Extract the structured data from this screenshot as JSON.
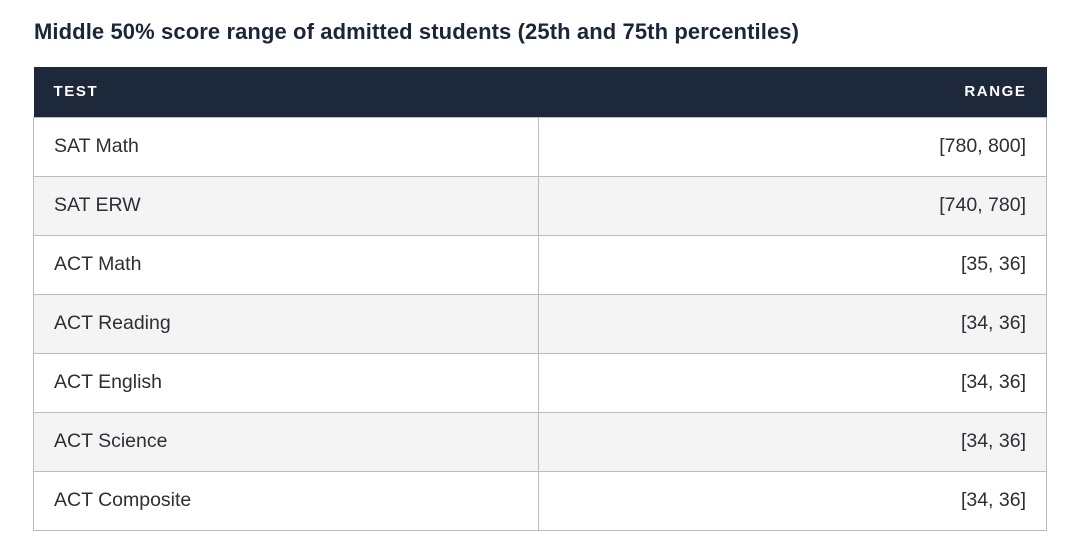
{
  "title": "Middle 50% score range of admitted students (25th and 75th percentiles)",
  "columns": {
    "test": "TEST",
    "range": "RANGE"
  },
  "rows": [
    {
      "test": "SAT Math",
      "range": "[780, 800]"
    },
    {
      "test": "SAT ERW",
      "range": "[740, 780]"
    },
    {
      "test": "ACT Math",
      "range": "[35, 36]"
    },
    {
      "test": "ACT Reading",
      "range": "[34, 36]"
    },
    {
      "test": "ACT English",
      "range": "[34, 36]"
    },
    {
      "test": "ACT Science",
      "range": "[34, 36]"
    },
    {
      "test": "ACT Composite",
      "range": "[34, 36]"
    }
  ],
  "colors": {
    "header_background": "#1d283a",
    "header_text": "#ffffff",
    "stripe_row": "#f4f4f4",
    "border": "#bcbcbc"
  }
}
